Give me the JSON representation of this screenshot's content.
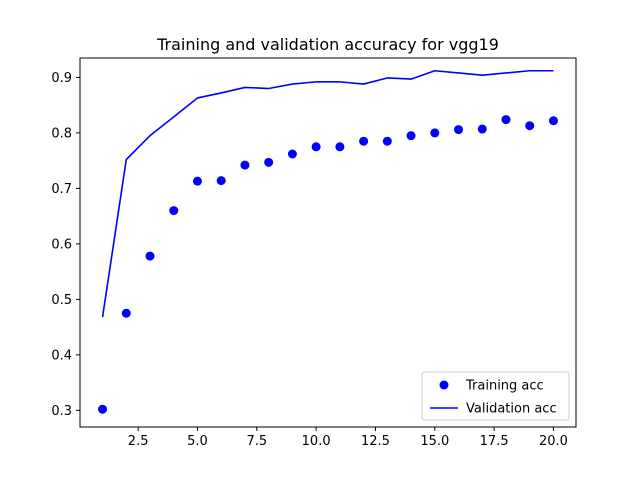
{
  "chart_data": {
    "type": "line",
    "title": "Training and validation accuracy for vgg19",
    "xlabel": "",
    "ylabel": "",
    "xlim": [
      0.05,
      20.95
    ],
    "ylim": [
      0.27,
      0.935
    ],
    "x_ticks": [
      2.5,
      5.0,
      7.5,
      10.0,
      12.5,
      15.0,
      17.5,
      20.0
    ],
    "x_tick_labels": [
      "2.5",
      "5.0",
      "7.5",
      "10.0",
      "12.5",
      "15.0",
      "17.5",
      "20.0"
    ],
    "y_ticks": [
      0.3,
      0.4,
      0.5,
      0.6,
      0.7,
      0.8,
      0.9
    ],
    "y_tick_labels": [
      "0.3",
      "0.4",
      "0.5",
      "0.6",
      "0.7",
      "0.8",
      "0.9"
    ],
    "grid": false,
    "legend_position": "lower right",
    "series": [
      {
        "name": "Training acc",
        "style": "markers",
        "color": "#0000ff",
        "x": [
          1,
          2,
          3,
          4,
          5,
          6,
          7,
          8,
          9,
          10,
          11,
          12,
          13,
          14,
          15,
          16,
          17,
          18,
          19,
          20
        ],
        "y": [
          0.302,
          0.475,
          0.578,
          0.66,
          0.713,
          0.714,
          0.742,
          0.747,
          0.762,
          0.775,
          0.775,
          0.785,
          0.785,
          0.795,
          0.8,
          0.806,
          0.807,
          0.824,
          0.813,
          0.822
        ]
      },
      {
        "name": "Validation acc",
        "style": "line",
        "color": "#0000ff",
        "x": [
          1,
          2,
          3,
          4,
          5,
          6,
          7,
          8,
          9,
          10,
          11,
          12,
          13,
          14,
          15,
          16,
          17,
          18,
          19,
          20
        ],
        "y": [
          0.468,
          0.752,
          0.795,
          0.829,
          0.863,
          0.872,
          0.882,
          0.88,
          0.888,
          0.892,
          0.892,
          0.888,
          0.899,
          0.897,
          0.912,
          0.908,
          0.904,
          0.908,
          0.912,
          0.912
        ]
      }
    ]
  }
}
